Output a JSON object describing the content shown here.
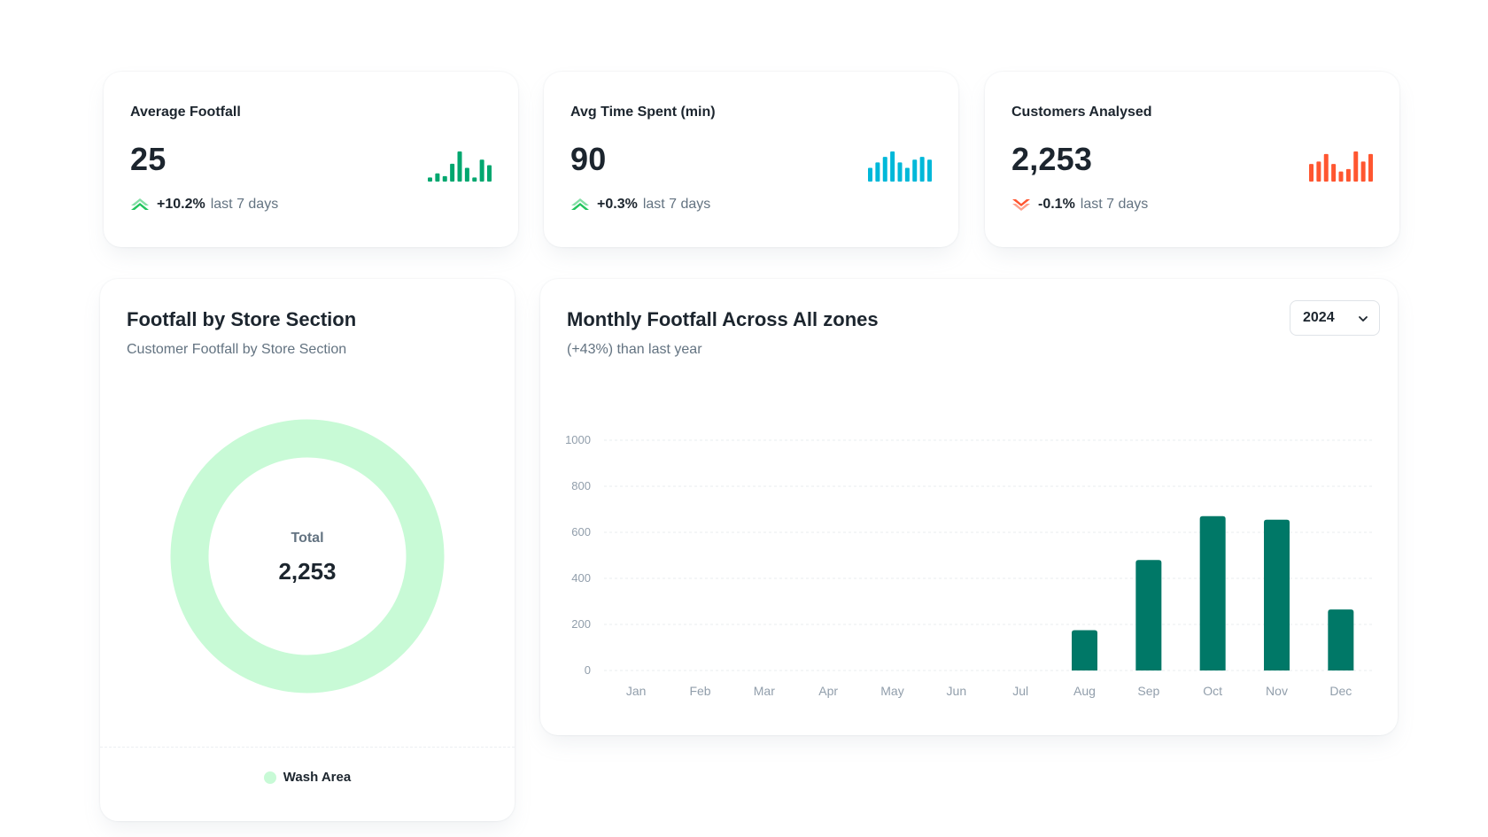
{
  "kpis": [
    {
      "title": "Average Footfall",
      "value": "25",
      "trend_direction": "up",
      "trend_pct": "+10.2%",
      "trend_period": "last 7 days",
      "color": "#00a76f",
      "spark": [
        3,
        6,
        4,
        13,
        22,
        10,
        3,
        16,
        12
      ]
    },
    {
      "title": "Avg Time Spent (min)",
      "value": "90",
      "trend_direction": "up",
      "trend_pct": "+0.3%",
      "trend_period": "last 7 days",
      "color": "#00b8d9",
      "spark": [
        10,
        14,
        18,
        22,
        14,
        10,
        16,
        18,
        16
      ]
    },
    {
      "title": "Customers Analysed",
      "value": "2,253",
      "trend_direction": "down",
      "trend_pct": "-0.1%",
      "trend_period": "last 7 days",
      "color": "#ff5630",
      "spark": [
        14,
        16,
        22,
        14,
        8,
        10,
        24,
        16,
        22
      ]
    }
  ],
  "section_card": {
    "title": "Footfall by Store Section",
    "subtitle": "Customer Footfall by Store Section",
    "total_label": "Total",
    "total_value": "2,253",
    "legend": [
      {
        "label": "Wash Area",
        "color": "#c8fad6"
      }
    ]
  },
  "monthly_card": {
    "title": "Monthly Footfall Across All zones",
    "subtitle": "(+43%) than last year",
    "year_selected": "2024"
  },
  "chart_data": {
    "type": "bar",
    "categories": [
      "Jan",
      "Feb",
      "Mar",
      "Apr",
      "May",
      "Jun",
      "Jul",
      "Aug",
      "Sep",
      "Oct",
      "Nov",
      "Dec"
    ],
    "values": [
      0,
      0,
      0,
      0,
      0,
      0,
      0,
      175,
      480,
      670,
      655,
      265
    ],
    "ylim": [
      0,
      1000
    ],
    "yticks": [
      0,
      200,
      400,
      600,
      800,
      1000
    ],
    "grid": true,
    "bar_color": "#007867"
  },
  "colors": {
    "up_trend": "#22c55e",
    "down_trend": "#ff5630"
  },
  "icons": {
    "trend_up": "double-chevron-up-icon",
    "trend_down": "double-chevron-down-icon",
    "select_chevron": "chevron-down-icon"
  }
}
